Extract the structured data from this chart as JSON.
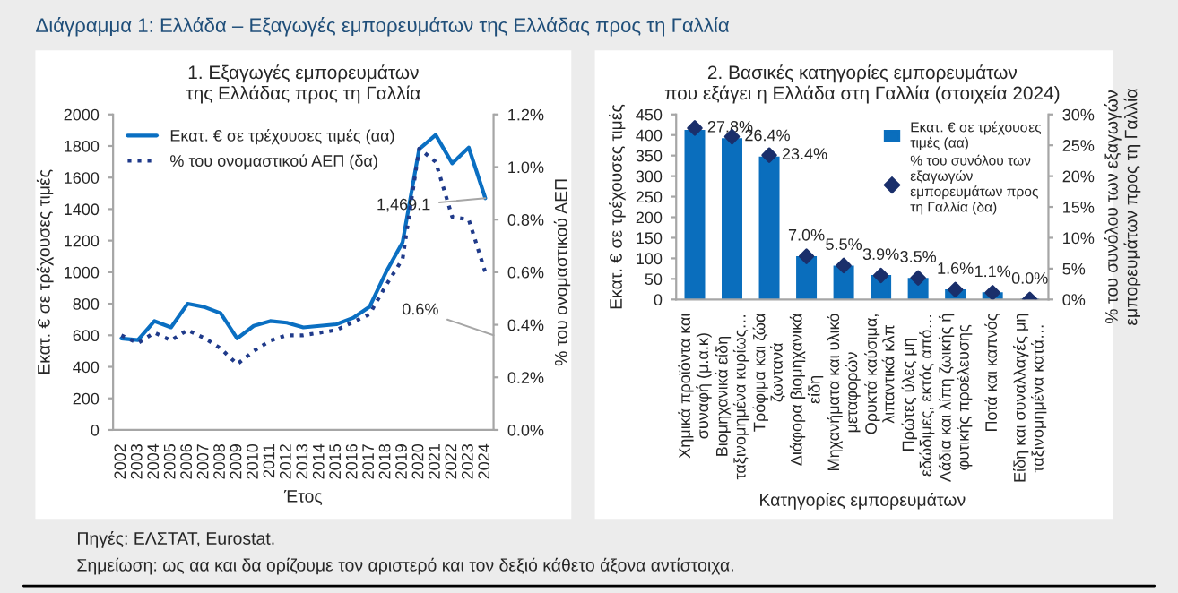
{
  "chart_data": [
    {
      "type": "line",
      "title": "1. Εξαγωγές εμπορευμάτων\nτης Ελλάδας προς τη Γαλλία",
      "xlabel": "Έτος",
      "ylabel": "Εκατ. € σε τρέχουσες τιμές",
      "y2label": "% του ονομαστικού ΑΕΠ",
      "categories": [
        "2002",
        "2003",
        "2004",
        "2005",
        "2006",
        "2007",
        "2008",
        "2009",
        "2010",
        "2011",
        "2012",
        "2013",
        "2014",
        "2015",
        "2016",
        "2017",
        "2018",
        "2019",
        "2020",
        "2021",
        "2022",
        "2023",
        "2024"
      ],
      "series": [
        {
          "name": "Εκατ. € σε τρέχουσες τιμές (αα)",
          "color": "#0a6fc2",
          "line_style": "solid",
          "values": [
            580,
            570,
            690,
            650,
            800,
            780,
            740,
            580,
            660,
            690,
            680,
            650,
            660,
            670,
            710,
            780,
            1000,
            1190,
            1780,
            1870,
            1690,
            1790,
            1469.1
          ]
        },
        {
          "name": "% του ονομαστικού ΑΕΠ (δα)",
          "color": "#1f3a8a",
          "line_style": "dotted",
          "axis": "y2",
          "values": [
            0.36,
            0.33,
            0.37,
            0.34,
            0.38,
            0.35,
            0.31,
            0.25,
            0.3,
            0.34,
            0.36,
            0.36,
            0.37,
            0.38,
            0.41,
            0.44,
            0.55,
            0.65,
            1.07,
            1.02,
            0.81,
            0.8,
            0.6
          ]
        }
      ],
      "ylim": [
        0,
        2000
      ],
      "yticks": [
        0,
        200,
        400,
        600,
        800,
        1000,
        1200,
        1400,
        1600,
        1800,
        2000
      ],
      "y2lim": [
        0,
        1.2
      ],
      "y2ticks": [
        {
          "value": 0,
          "label": "0.0%"
        },
        {
          "value": 0.2,
          "label": "0.2%"
        },
        {
          "value": 0.4,
          "label": "0.4%"
        },
        {
          "value": 0.6,
          "label": "0.6%"
        },
        {
          "value": 0.8,
          "label": "0.8%"
        },
        {
          "value": 1.0,
          "label": "1.0%"
        },
        {
          "value": 1.2,
          "label": "1.2%"
        }
      ],
      "legend": "top left",
      "grid": false,
      "marker": "none",
      "annotations": [
        "Διάγραμμα 1: Ελλάδα – Εξαγωγές εμπορευμάτων της Ελλάδας προς τη Γαλλία",
        {
          "text": "1,469.1",
          "x": "2024",
          "y": 1469.1
        },
        "0.6%",
        "Πηγές: ΕΛΣΤΑΤ, Eurostat.",
        "Σημείωση: ως αα και δα ορίζουμε τον αριστερό και τον δεξιό κάθετο άξονα αντίστοιχα."
      ]
    },
    {
      "type": "bar",
      "title": "2. Βασικές κατηγορίες εμπορευμάτων\nπου εξάγει η Ελλάδα στη Γαλλία (στοιχεία 2024)",
      "xlabel": "Κατηγορίες εμπορευμάτων",
      "ylabel": "Εκατ. € σε τρέχουσες τιμές",
      "y2label": "% του συνόλου των εξαγωγών\nεμπορευμάτων προς τη Γαλλία",
      "categories": [
        "Χημικά προϊόντα και\nσυναφή (μ.α.κ)",
        "Βιομηχανικά είδη\nταξινομημένα κυρίως…",
        "Τρόφιμα και ζώα\nζωντανά",
        "Διάφορα βιομηχανικά\nείδη",
        "Μηχανήματα και υλικό\nμεταφορών",
        "Ορυκτά καύσιμα,\nλιπαντικά κλπ",
        "Πρώτες ύλες μη\nεδώδιμες, εκτός από…",
        "Λάδια και λίπη ζωικής ή\nφυτικής προέλευσης",
        "Ποτά και καπνός",
        "Είδη και συναλλαγές μη\nταξινομημένα κατά…"
      ],
      "series": [
        {
          "name": "Εκατ. € σε τρέχουσες\nτιμές (αα)",
          "type": "bar",
          "color": "#0a6ebd",
          "values": [
            410,
            390,
            345,
            103,
            80,
            57,
            50,
            22,
            15,
            0
          ]
        },
        {
          "name": "% του συνόλου των\nεξαγωγών\nεμπορευμάτων προς\nτη Γαλλία (δα)",
          "type": "scatter",
          "marker": "diamond",
          "color": "#1a2f6b",
          "axis": "y2",
          "values": [
            27.8,
            26.4,
            23.4,
            7.0,
            5.5,
            3.9,
            3.5,
            1.6,
            1.1,
            0.0
          ],
          "value_labels": [
            "27.8%",
            "26.4%",
            "23.4%",
            "7.0%",
            "5.5%",
            "3.9%",
            "3.5%",
            "1.6%",
            "1.1%",
            "0.0%"
          ]
        }
      ],
      "ylim": [
        0,
        450
      ],
      "yticks": [
        0,
        50,
        100,
        150,
        200,
        250,
        300,
        350,
        400,
        450
      ],
      "y2lim": [
        0,
        30
      ],
      "y2ticks": [
        {
          "value": 0,
          "label": "0%"
        },
        {
          "value": 5,
          "label": "5%"
        },
        {
          "value": 10,
          "label": "10%"
        },
        {
          "value": 15,
          "label": "15%"
        },
        {
          "value": 20,
          "label": "20%"
        },
        {
          "value": 25,
          "label": "25%"
        },
        {
          "value": 30,
          "label": "30%"
        }
      ],
      "legend": "top right",
      "grid": false
    }
  ]
}
